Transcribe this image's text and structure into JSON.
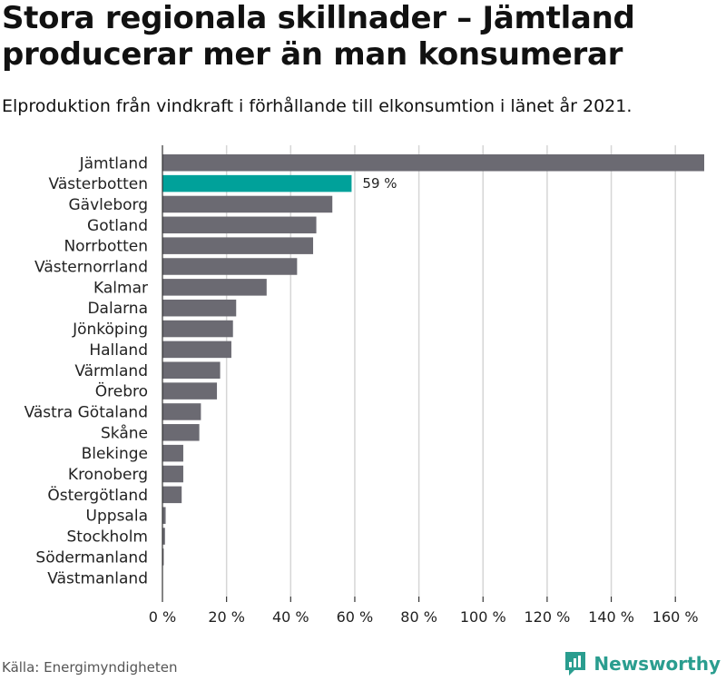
{
  "title_line1": "Stora regionala skillnader – Jämtland",
  "title_line2": "producerar mer än man konsumerar",
  "subtitle": "Elproduktion från vindkraft i förhållande till elkonsumtion i länet år 2021.",
  "source": "Källa: Energimyndigheten",
  "brand": {
    "name": "Newsworthy",
    "logo_icon": "bar-chart-logo-icon"
  },
  "colors": {
    "bar": "#6b6a72",
    "highlight": "#00a19a",
    "grid": "#d6d6d6",
    "axis": "#333333",
    "brand": "#2a9d8f"
  },
  "chart_data": {
    "type": "bar",
    "orientation": "horizontal",
    "categories": [
      "Jämtland",
      "Västerbotten",
      "Gävleborg",
      "Gotland",
      "Norrbotten",
      "Västernorrland",
      "Kalmar",
      "Dalarna",
      "Jönköping",
      "Halland",
      "Värmland",
      "Örebro",
      "Västra Götaland",
      "Skåne",
      "Blekinge",
      "Kronoberg",
      "Östergötland",
      "Uppsala",
      "Stockholm",
      "Södermanland",
      "Västmanland"
    ],
    "values": [
      169,
      59,
      53,
      48,
      47,
      42,
      32.5,
      23,
      22,
      21.5,
      18,
      17,
      12,
      11.5,
      6.5,
      6.5,
      6,
      1,
      0.8,
      0.4,
      0
    ],
    "highlight_index": 1,
    "data_labels": [
      {
        "index": 1,
        "text": "59 %"
      }
    ],
    "xlim": [
      0,
      169
    ],
    "xticks": [
      0,
      20,
      40,
      60,
      80,
      100,
      120,
      140,
      160
    ],
    "xtick_labels": [
      "0 %",
      "20 %",
      "40 %",
      "60 %",
      "80 %",
      "100 %",
      "120 %",
      "140 %",
      "160 %"
    ],
    "grid": true,
    "xlabel": "",
    "ylabel": ""
  }
}
